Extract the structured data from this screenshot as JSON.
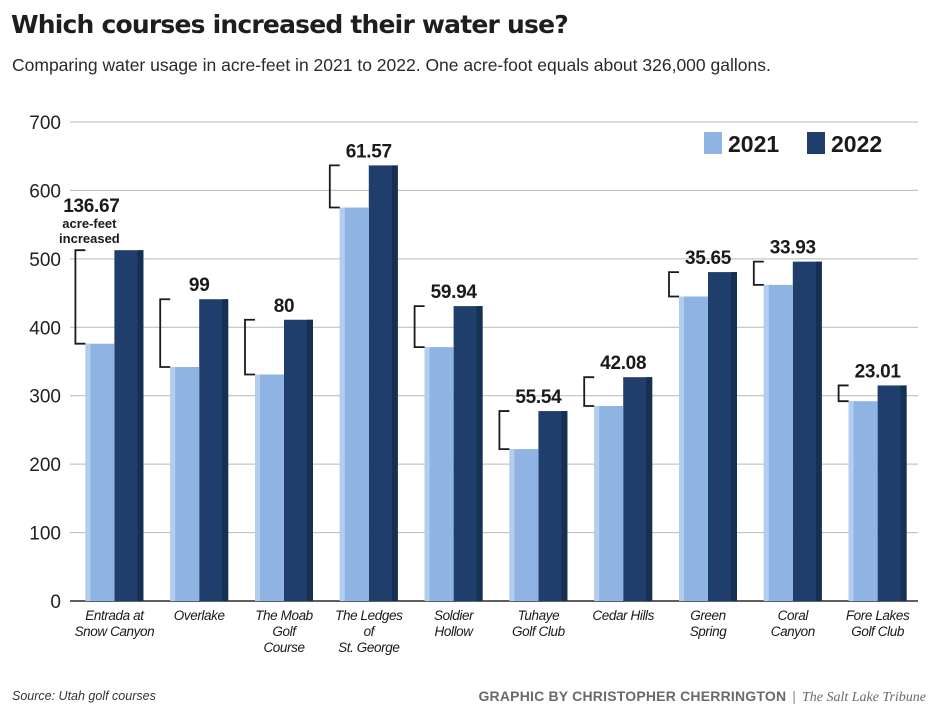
{
  "title": "Which courses increased their water use?",
  "subtitle": "Comparing water usage in acre-feet in 2021 to 2022. One acre-foot equals about 326,000 gallons.",
  "source": "Source: Utah golf courses",
  "credit": {
    "byline": "GRAPHIC BY CHRISTOPHER CHERRINGTON",
    "separator": "|",
    "publication": "The Salt Lake Tribune"
  },
  "colors": {
    "2021": "#8fb4e3",
    "2021_shade": "#b3cdee",
    "2022": "#1f3e6b",
    "2022_shade": "#2d4f80",
    "grid": "#b8b8b8",
    "text": "#1a1a1a"
  },
  "chart_data": {
    "type": "bar",
    "title": "Which courses increased their water use?",
    "xlabel": "",
    "ylabel": "",
    "ylim": [
      0,
      700
    ],
    "yticks": [
      0,
      100,
      200,
      300,
      400,
      500,
      600,
      700
    ],
    "grid": true,
    "legend_position": "top-right",
    "categories": [
      [
        "Entrada at",
        "Snow Canyon"
      ],
      [
        "Overlake"
      ],
      [
        "The Moab",
        "Golf",
        "Course"
      ],
      [
        "The Ledges",
        "of",
        "St. George"
      ],
      [
        "Soldier",
        "Hollow"
      ],
      [
        "Tuhaye",
        "Golf Club"
      ],
      [
        "Cedar Hills"
      ],
      [
        "Green",
        "Spring"
      ],
      [
        "Coral",
        "Canyon"
      ],
      [
        "Fore Lakes",
        "Golf Club"
      ]
    ],
    "series": [
      {
        "name": "2021",
        "values": [
          376,
          342,
          331,
          575,
          371,
          222,
          285,
          445,
          462,
          292
        ]
      },
      {
        "name": "2022",
        "values": [
          512.67,
          441,
          411,
          636.57,
          430.94,
          277.54,
          327.08,
          480.65,
          495.93,
          315.01
        ]
      }
    ],
    "increase_labels": [
      "136.67",
      "99",
      "80",
      "61.57",
      "59.94",
      "55.54",
      "42.08",
      "35.65",
      "33.93",
      "23.01"
    ],
    "first_bar_annotation": [
      "acre-feet",
      "increased"
    ]
  }
}
